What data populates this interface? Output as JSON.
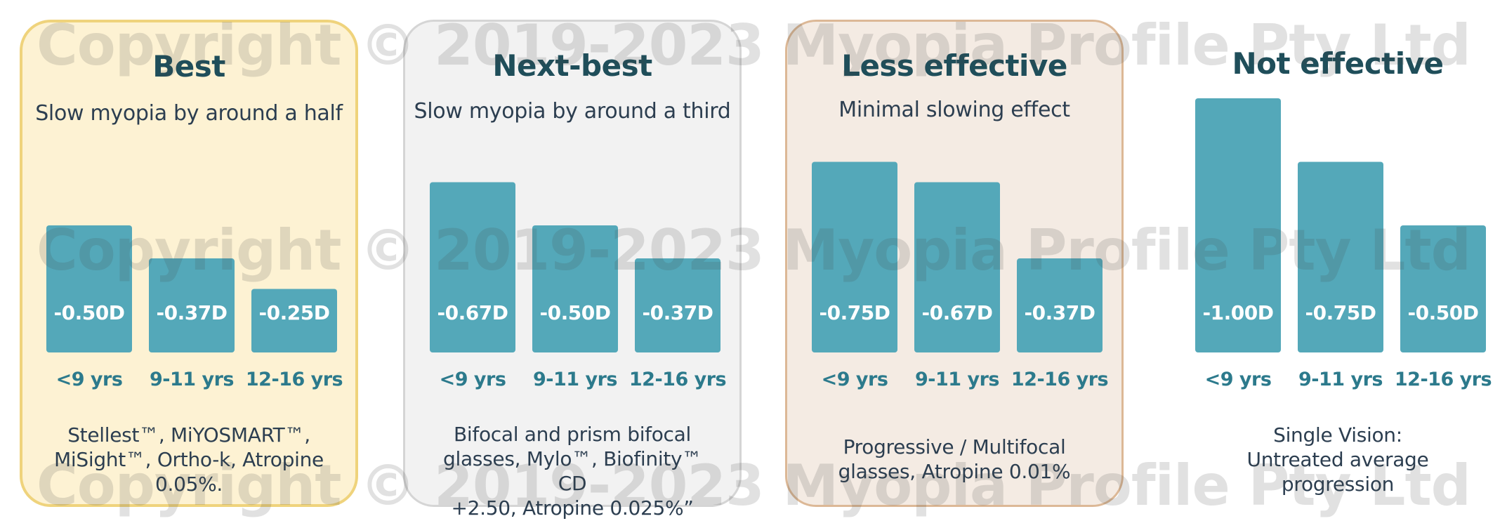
{
  "colors": {
    "bar": "#54a8b9",
    "title": "#1f4e5a",
    "category": "#2c7a8c",
    "text": "#2c3e50"
  },
  "watermark": "Copyright © 2019-2023 Myopia Profile Pty Ltd",
  "panels": [
    {
      "title": "Best",
      "subtitle": "Slow myopia by around a half",
      "footnote_lines": [
        "Stellest™, MiYOSMART™,",
        "MiSight™, Ortho-k, Atropine",
        "0.05%."
      ],
      "bg": "#fdf2d3",
      "border": "#efd37c"
    },
    {
      "title": "Next-best",
      "subtitle": "Slow myopia by around a third",
      "footnote_lines": [
        "Bifocal and prism bifocal",
        "glasses, Mylo™, Biofinity™ CD",
        "+2.50, Atropine 0.025%”"
      ],
      "bg": "#f2f2f2",
      "border": "#d5d5d5"
    },
    {
      "title": "Less effective",
      "subtitle": "Minimal slowing effect",
      "footnote_lines": [
        "Progressive / Multifocal",
        "glasses, Atropine 0.01%"
      ],
      "bg": "#f4ebe3",
      "border": "#dcb896"
    },
    {
      "title": "Not effective",
      "subtitle": "",
      "footnote_lines": [
        "Single Vision:",
        "Untreated average",
        "progression"
      ],
      "bg": "#ffffff",
      "border": "#ffffff"
    }
  ],
  "chart_data": [
    {
      "type": "bar",
      "title": "Best",
      "categories": [
        "<9 yrs",
        "9-11 yrs",
        "12-16 yrs"
      ],
      "values": [
        -0.5,
        -0.37,
        -0.25
      ],
      "value_labels": [
        "-0.50D",
        "-0.37D",
        "-0.25D"
      ],
      "ylim": [
        0,
        -1.0
      ],
      "grid": false
    },
    {
      "type": "bar",
      "title": "Next-best",
      "categories": [
        "<9 yrs",
        "9-11 yrs",
        "12-16 yrs"
      ],
      "values": [
        -0.67,
        -0.5,
        -0.37
      ],
      "value_labels": [
        "-0.67D",
        "-0.50D",
        "-0.37D"
      ],
      "ylim": [
        0,
        -1.0
      ],
      "grid": false
    },
    {
      "type": "bar",
      "title": "Less effective",
      "categories": [
        "<9 yrs",
        "9-11 yrs",
        "12-16 yrs"
      ],
      "values": [
        -0.75,
        -0.67,
        -0.37
      ],
      "value_labels": [
        "-0.75D",
        "-0.67D",
        "-0.37D"
      ],
      "ylim": [
        0,
        -1.0
      ],
      "grid": false
    },
    {
      "type": "bar",
      "title": "Not effective",
      "categories": [
        "<9 yrs",
        "9-11 yrs",
        "12-16 yrs"
      ],
      "values": [
        -1.0,
        -0.75,
        -0.5
      ],
      "value_labels": [
        "-1.00D",
        "-0.75D",
        "-0.50D"
      ],
      "ylim": [
        0,
        -1.0
      ],
      "grid": false
    }
  ]
}
